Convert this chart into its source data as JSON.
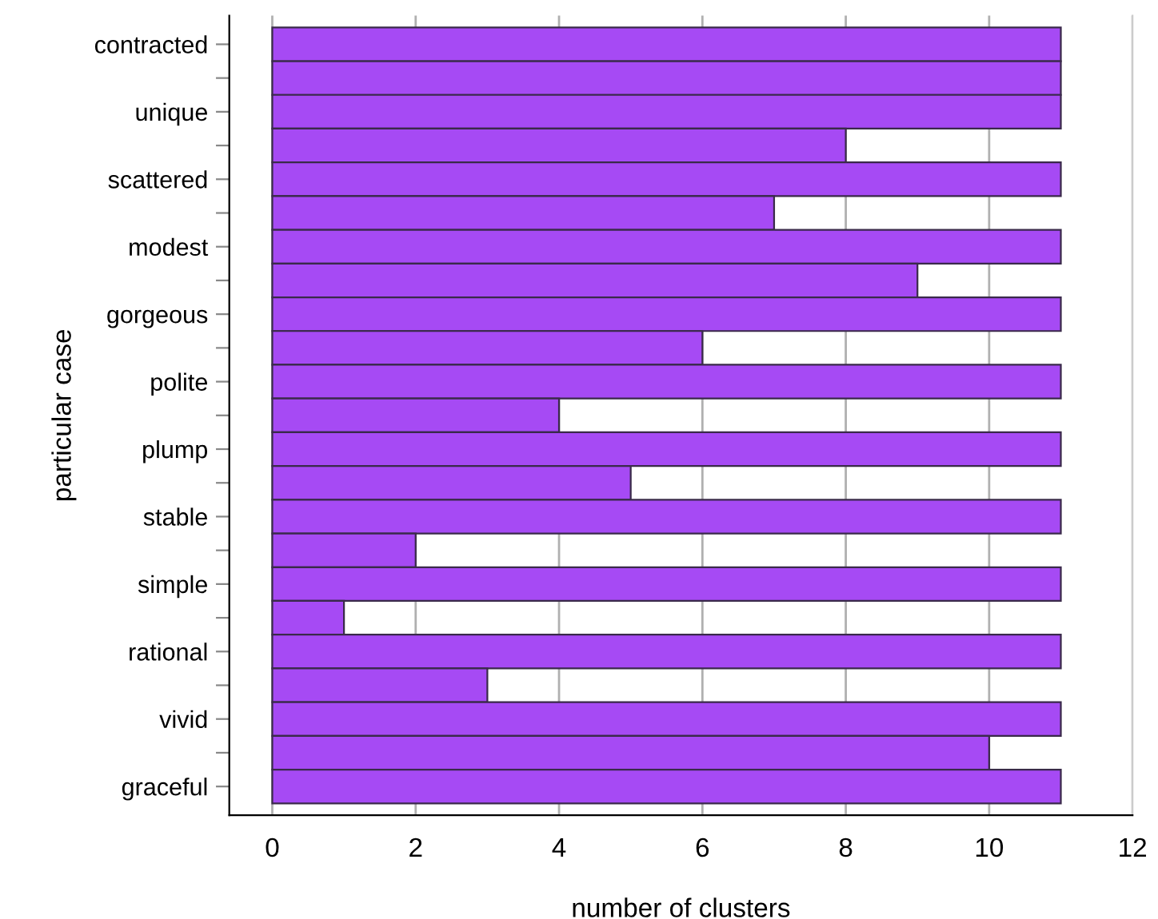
{
  "chart_data": {
    "type": "bar",
    "orientation": "horizontal",
    "xlabel": "number of clusters",
    "ylabel": "particular case",
    "categories": [
      "contracted",
      null,
      "unique",
      null,
      "scattered",
      null,
      "modest",
      null,
      "gorgeous",
      null,
      "polite",
      null,
      "plump",
      null,
      "stable",
      null,
      "simple",
      null,
      "rational",
      null,
      "vivid",
      null,
      "graceful"
    ],
    "values": [
      11,
      11,
      11,
      8,
      11,
      7,
      11,
      9,
      11,
      6,
      11,
      4,
      11,
      5,
      11,
      2,
      11,
      1,
      11,
      3,
      11,
      10,
      11
    ],
    "color": "#a64af4",
    "xlim": [
      -0.6,
      12
    ],
    "xticks": [
      0,
      2,
      4,
      6,
      8,
      10,
      12
    ],
    "grid": "x",
    "legend": false
  }
}
